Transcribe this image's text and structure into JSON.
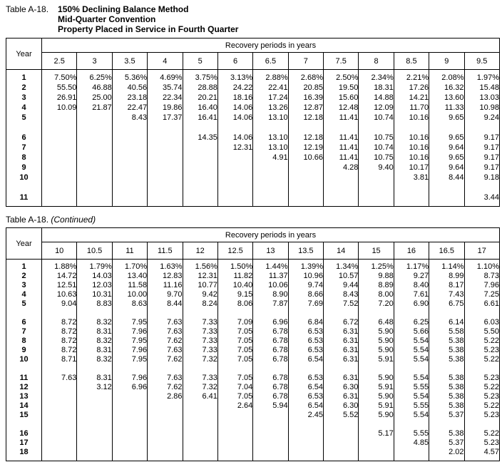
{
  "tables": [
    {
      "caption_label": "Table A-18.",
      "caption_title_lines": [
        "150% Declining Balance Method",
        "Mid-Quarter Convention",
        "Property Placed in Service in Fourth Quarter"
      ],
      "year_header": "Year",
      "span_header": "Recovery periods in years",
      "columns": [
        "2.5",
        "3",
        "3.5",
        "4",
        "5",
        "6",
        "6.5",
        "7",
        "7.5",
        "8",
        "8.5",
        "9",
        "9.5"
      ],
      "gaps_after": [
        "5",
        "10"
      ],
      "rows": [
        {
          "year": "1",
          "values": [
            "7.50%",
            "6.25%",
            "5.36%",
            "4.69%",
            "3.75%",
            "3.13%",
            "2.88%",
            "2.68%",
            "2.50%",
            "2.34%",
            "2.21%",
            "2.08%",
            "1.97%"
          ]
        },
        {
          "year": "2",
          "values": [
            "55.50",
            "46.88",
            "40.56",
            "35.74",
            "28.88",
            "24.22",
            "22.41",
            "20.85",
            "19.50",
            "18.31",
            "17.26",
            "16.32",
            "15.48"
          ]
        },
        {
          "year": "3",
          "values": [
            "26.91",
            "25.00",
            "23.18",
            "22.34",
            "20.21",
            "18.16",
            "17.24",
            "16.39",
            "15.60",
            "14.88",
            "14.21",
            "13.60",
            "13.03"
          ]
        },
        {
          "year": "4",
          "values": [
            "10.09",
            "21.87",
            "22.47",
            "19.86",
            "16.40",
            "14.06",
            "13.26",
            "12.87",
            "12.48",
            "12.09",
            "11.70",
            "11.33",
            "10.98"
          ]
        },
        {
          "year": "5",
          "values": [
            "",
            "",
            "8.43",
            "17.37",
            "16.41",
            "14.06",
            "13.10",
            "12.18",
            "11.41",
            "10.74",
            "10.16",
            "9.65",
            "9.24"
          ]
        },
        {
          "year": "6",
          "values": [
            "",
            "",
            "",
            "",
            "14.35",
            "14.06",
            "13.10",
            "12.18",
            "11.41",
            "10.75",
            "10.16",
            "9.65",
            "9.17"
          ]
        },
        {
          "year": "7",
          "values": [
            "",
            "",
            "",
            "",
            "",
            "12.31",
            "13.10",
            "12.19",
            "11.41",
            "10.74",
            "10.16",
            "9.64",
            "9.17"
          ]
        },
        {
          "year": "8",
          "values": [
            "",
            "",
            "",
            "",
            "",
            "",
            "4.91",
            "10.66",
            "11.41",
            "10.75",
            "10.16",
            "9.65",
            "9.17"
          ]
        },
        {
          "year": "9",
          "values": [
            "",
            "",
            "",
            "",
            "",
            "",
            "",
            "",
            "4.28",
            "9.40",
            "10.17",
            "9.64",
            "9.17"
          ]
        },
        {
          "year": "10",
          "values": [
            "",
            "",
            "",
            "",
            "",
            "",
            "",
            "",
            "",
            "",
            "3.81",
            "8.44",
            "9.18"
          ]
        },
        {
          "year": "11",
          "values": [
            "",
            "",
            "",
            "",
            "",
            "",
            "",
            "",
            "",
            "",
            "",
            "",
            "3.44"
          ]
        }
      ]
    },
    {
      "caption_label": "Table A-18.",
      "caption_continued": "(Continued)",
      "year_header": "Year",
      "span_header": "Recovery periods in years",
      "columns": [
        "10",
        "10.5",
        "11",
        "11.5",
        "12",
        "12.5",
        "13",
        "13.5",
        "14",
        "15",
        "16",
        "16.5",
        "17"
      ],
      "gaps_after": [
        "5",
        "10",
        "15"
      ],
      "rows": [
        {
          "year": "1",
          "values": [
            "1.88%",
            "1.79%",
            "1.70%",
            "1.63%",
            "1.56%",
            "1.50%",
            "1.44%",
            "1.39%",
            "1.34%",
            "1.25%",
            "1.17%",
            "1.14%",
            "1.10%"
          ]
        },
        {
          "year": "2",
          "values": [
            "14.72",
            "14.03",
            "13.40",
            "12.83",
            "12.31",
            "11.82",
            "11.37",
            "10.96",
            "10.57",
            "9.88",
            "9.27",
            "8.99",
            "8.73"
          ]
        },
        {
          "year": "3",
          "values": [
            "12.51",
            "12.03",
            "11.58",
            "11.16",
            "10.77",
            "10.40",
            "10.06",
            "9.74",
            "9.44",
            "8.89",
            "8.40",
            "8.17",
            "7.96"
          ]
        },
        {
          "year": "4",
          "values": [
            "10.63",
            "10.31",
            "10.00",
            "9.70",
            "9.42",
            "9.15",
            "8.90",
            "8.66",
            "8.43",
            "8.00",
            "7.61",
            "7.43",
            "7.25"
          ]
        },
        {
          "year": "5",
          "values": [
            "9.04",
            "8.83",
            "8.63",
            "8.44",
            "8.24",
            "8.06",
            "7.87",
            "7.69",
            "7.52",
            "7.20",
            "6.90",
            "6.75",
            "6.61"
          ]
        },
        {
          "year": "6",
          "values": [
            "8.72",
            "8.32",
            "7.95",
            "7.63",
            "7.33",
            "7.09",
            "6.96",
            "6.84",
            "6.72",
            "6.48",
            "6.25",
            "6.14",
            "6.03"
          ]
        },
        {
          "year": "7",
          "values": [
            "8.72",
            "8.31",
            "7.96",
            "7.63",
            "7.33",
            "7.05",
            "6.78",
            "6.53",
            "6.31",
            "5.90",
            "5.66",
            "5.58",
            "5.50"
          ]
        },
        {
          "year": "8",
          "values": [
            "8.72",
            "8.32",
            "7.95",
            "7.62",
            "7.33",
            "7.05",
            "6.78",
            "6.53",
            "6.31",
            "5.90",
            "5.54",
            "5.38",
            "5.22"
          ]
        },
        {
          "year": "9",
          "values": [
            "8.72",
            "8.31",
            "7.96",
            "7.63",
            "7.33",
            "7.05",
            "6.78",
            "6.53",
            "6.31",
            "5.90",
            "5.54",
            "5.38",
            "5.23"
          ]
        },
        {
          "year": "10",
          "values": [
            "8.71",
            "8.32",
            "7.95",
            "7.62",
            "7.32",
            "7.05",
            "6.78",
            "6.54",
            "6.31",
            "5.91",
            "5.54",
            "5.38",
            "5.22"
          ]
        },
        {
          "year": "11",
          "values": [
            "7.63",
            "8.31",
            "7.96",
            "7.63",
            "7.33",
            "7.05",
            "6.78",
            "6.53",
            "6.31",
            "5.90",
            "5.54",
            "5.38",
            "5.23"
          ]
        },
        {
          "year": "12",
          "values": [
            "",
            "3.12",
            "6.96",
            "7.62",
            "7.32",
            "7.04",
            "6.78",
            "6.54",
            "6.30",
            "5.91",
            "5.55",
            "5.38",
            "5.22"
          ]
        },
        {
          "year": "13",
          "values": [
            "",
            "",
            "",
            "2.86",
            "6.41",
            "7.05",
            "6.78",
            "6.53",
            "6.31",
            "5.90",
            "5.54",
            "5.38",
            "5.23"
          ]
        },
        {
          "year": "14",
          "values": [
            "",
            "",
            "",
            "",
            "",
            "2.64",
            "5.94",
            "6.54",
            "6.30",
            "5.91",
            "5.55",
            "5.38",
            "5.22"
          ]
        },
        {
          "year": "15",
          "values": [
            "",
            "",
            "",
            "",
            "",
            "",
            "",
            "2.45",
            "5.52",
            "5.90",
            "5.54",
            "5.37",
            "5.23"
          ]
        },
        {
          "year": "16",
          "values": [
            "",
            "",
            "",
            "",
            "",
            "",
            "",
            "",
            "",
            "5.17",
            "5.55",
            "5.38",
            "5.22"
          ]
        },
        {
          "year": "17",
          "values": [
            "",
            "",
            "",
            "",
            "",
            "",
            "",
            "",
            "",
            "",
            "4.85",
            "5.37",
            "5.23"
          ]
        },
        {
          "year": "18",
          "values": [
            "",
            "",
            "",
            "",
            "",
            "",
            "",
            "",
            "",
            "",
            "",
            "2.02",
            "4.57"
          ]
        }
      ]
    }
  ]
}
